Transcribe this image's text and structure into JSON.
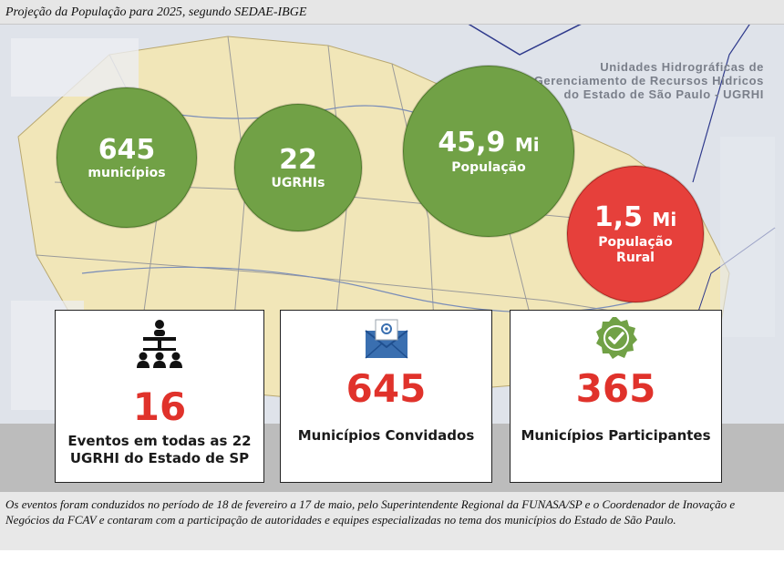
{
  "caption": "Projeção da População para 2025, segundo SEDAE-IBGE",
  "map_title": [
    "Unidades Hidrográficas de",
    "Gerenciamento de Recursos Hídricos",
    "do Estado de São Paulo - UGRHI"
  ],
  "circles": [
    {
      "value": "645",
      "label": "municípios"
    },
    {
      "value": "22",
      "label": "UGRHIs"
    },
    {
      "value": "45,9",
      "unit": "Mi",
      "label": "População"
    },
    {
      "value": "1,5",
      "unit": "Mi",
      "label_line1": "População",
      "label_line2": "Rural"
    }
  ],
  "cards": [
    {
      "icon": "meeting-people-icon",
      "value": "16",
      "label_line1": "Eventos em todas as 22",
      "label_line2": "UGRHI do Estado de SP"
    },
    {
      "icon": "email-envelope-icon",
      "value": "645",
      "label": "Municípios Convidados"
    },
    {
      "icon": "verified-check-badge-icon",
      "value": "365",
      "label": "Municípios Participantes"
    }
  ],
  "footer_text": "Os eventos foram conduzidos no período de 18 de fevereiro a 17 de maio, pelo Superintendente Regional da FUNASA/SP e o Coordenador de Inovação e Negócios da FCAV e contaram com a participação de autoridades e equipes especializadas no tema dos municípios do Estado de São Paulo.",
  "colors": {
    "green": "#71a146",
    "red": "#e6403b",
    "number_red": "#e0322b",
    "icon_blue": "#3a6fb0"
  }
}
